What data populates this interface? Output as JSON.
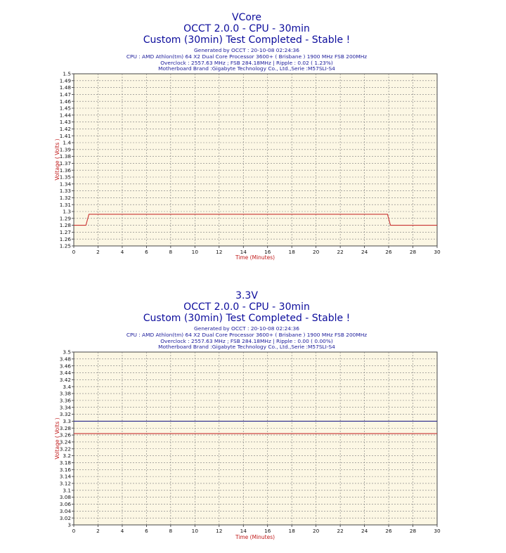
{
  "chart_data": [
    {
      "type": "line",
      "title_lines": [
        "VCore",
        "OCCT 2.0.0 - CPU - 30min",
        "Custom (30min) Test Completed - Stable !"
      ],
      "info_lines": [
        "Generated by OCCT : 20-10-08 02:24:36",
        "CPU : AMD Athlon(tm) 64 X2 Dual Core Processor 3600+ ( Brisbane ) 1900 MHz FSB 200MHz",
        "Overclock : 2557.63 MHz ; FSB 284.18MHz | Ripple : 0.02 ( 1.23%)",
        "Motherboard Brand :Gigabyte Technology Co., Ltd.,Serie :M57SLI-S4"
      ],
      "xlabel": "Time (Minutes)",
      "ylabel": "Voltage ( Volts )",
      "xlim": [
        0,
        30
      ],
      "ylim": [
        1.25,
        1.5
      ],
      "x_ticks": [
        0,
        2,
        4,
        6,
        8,
        10,
        12,
        14,
        16,
        18,
        20,
        22,
        24,
        26,
        28,
        30
      ],
      "y_ticks": [
        "1.25",
        "1.26",
        "1.27",
        "1.28",
        "1.29",
        "1.3",
        "1.31",
        "1.32",
        "1.33",
        "1.34",
        "1.35",
        "1.36",
        "1.37",
        "1.38",
        "1.39",
        "1.4",
        "1.41",
        "1.42",
        "1.43",
        "1.44",
        "1.45",
        "1.46",
        "1.47",
        "1.48",
        "1.49",
        "1.5"
      ],
      "grid": true,
      "series": [
        {
          "color": "#c83232",
          "x": [
            0,
            1.0,
            1.25,
            25.9,
            26.15,
            30
          ],
          "y": [
            1.28,
            1.28,
            1.296,
            1.296,
            1.28,
            1.28
          ]
        }
      ]
    },
    {
      "type": "line",
      "title_lines": [
        "3.3V",
        "OCCT 2.0.0 - CPU - 30min",
        "Custom (30min) Test Completed - Stable !"
      ],
      "info_lines": [
        "Generated by OCCT : 20-10-08 02:24:36",
        "CPU : AMD Athlon(tm) 64 X2 Dual Core Processor 3600+ ( Brisbane ) 1900 MHz FSB 200MHz",
        "Overclock : 2557.63 MHz ; FSB 284.18MHz | Ripple : 0.00 ( 0.00%)",
        "Motherboard Brand :Gigabyte Technology Co., Ltd.,Serie :M57SLI-S4"
      ],
      "xlabel": "Time (Minutes)",
      "ylabel": "Voltage ( Volts )",
      "xlim": [
        0,
        30
      ],
      "ylim": [
        3,
        3.5
      ],
      "x_ticks": [
        0,
        2,
        4,
        6,
        8,
        10,
        12,
        14,
        16,
        18,
        20,
        22,
        24,
        26,
        28,
        30
      ],
      "y_ticks": [
        "3",
        "3.02",
        "3.04",
        "3.06",
        "3.08",
        "3.1",
        "3.12",
        "3.14",
        "3.16",
        "3.18",
        "3.2",
        "3.22",
        "3.24",
        "3.26",
        "3.28",
        "3.3",
        "3.32",
        "3.34",
        "3.36",
        "3.38",
        "3.4",
        "3.42",
        "3.44",
        "3.46",
        "3.48",
        "3.5"
      ],
      "grid": true,
      "series": [
        {
          "color": "#26268c",
          "x": [
            0,
            30
          ],
          "y": [
            3.3,
            3.3
          ]
        },
        {
          "color": "#c83232",
          "x": [
            0,
            30
          ],
          "y": [
            3.264,
            3.264
          ]
        }
      ]
    }
  ],
  "colors": {
    "title": "#0c0c9c",
    "info": "#1a1a9a",
    "axis_label": "#c01818",
    "plot_bg": "#fcf7e4",
    "grid": "#7a7a7a"
  }
}
